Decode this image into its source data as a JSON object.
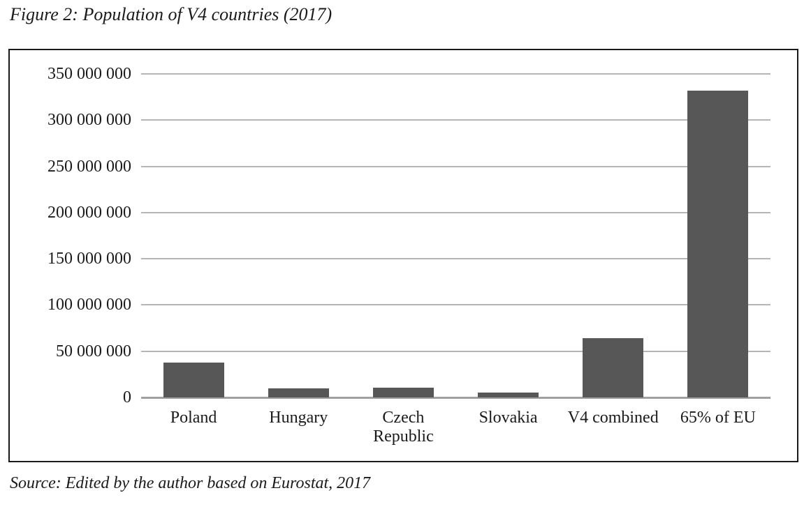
{
  "figure": {
    "title": "Figure 2: Population of V4 countries (2017)",
    "source": "Source: Edited by the author based on Eurostat, 2017"
  },
  "chart_data": {
    "type": "bar",
    "title": "Figure 2: Population of V4 countries (2017)",
    "categories": [
      "Poland",
      "Hungary",
      "Czech Republic",
      "Slovakia",
      "V4 combined",
      "65% of EU"
    ],
    "values": [
      38000000,
      9800000,
      10600000,
      5400000,
      63800000,
      332000000
    ],
    "xlabel": "",
    "ylabel": "",
    "ylim": [
      0,
      350000000
    ],
    "ytick_step": 50000000,
    "ytick_labels": [
      "0",
      "50 000 000",
      "100 000 000",
      "150 000 000",
      "200 000 000",
      "250 000 000",
      "300 000 000",
      "350 000 000"
    ],
    "grid": true,
    "legend": false,
    "source_note": "Source: Edited by the author based on Eurostat, 2017",
    "colors": {
      "bar": "#575757",
      "gridline": "#b5b5b5",
      "baseline": "#a0a0a0",
      "frame": "#1a1a1a",
      "text": "#1a1a1a"
    }
  }
}
